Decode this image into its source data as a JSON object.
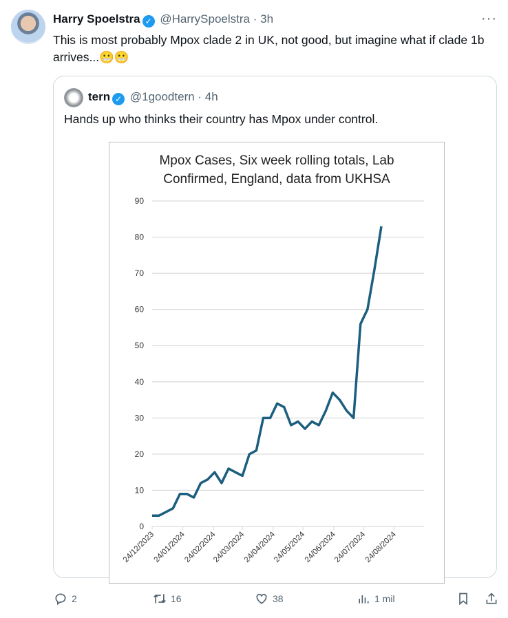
{
  "tweet": {
    "author_name": "Harry Spoelstra",
    "handle": "@HarrySpoelstra",
    "time": "· 3h",
    "text": "This is most probably Mpox clade 2 in UK, not good, but imagine what if clade 1b arrives...😬😬",
    "more_icon": "more-horizontal-icon"
  },
  "quote": {
    "author_name": "tern",
    "handle": "@1goodtern",
    "time": "· 4h",
    "text": "Hands up who thinks their country has Mpox under control."
  },
  "actions": {
    "replies": "2",
    "reposts": "16",
    "likes": "38",
    "views": "1 mil"
  },
  "chart_data": {
    "type": "line",
    "title": "Mpox Cases, Six week rolling totals, Lab Confirmed, England, data from UKHSA",
    "title_lines": [
      "Mpox Cases, Six week rolling totals, Lab",
      "Confirmed, England, data from UKHSA"
    ],
    "xlabel": "",
    "ylabel": "",
    "ylim": [
      0,
      90
    ],
    "yticks": [
      0,
      10,
      20,
      30,
      40,
      50,
      60,
      70,
      80,
      90
    ],
    "xlim": [
      "2023-12-24",
      "2024-09-23"
    ],
    "xtick_labels": [
      "24/12/2023",
      "24/01/2024",
      "24/02/2024",
      "24/03/2024",
      "24/04/2024",
      "24/05/2024",
      "24/06/2024",
      "24/07/2024",
      "24/08/2024"
    ],
    "xticks": [
      "2023-12-24",
      "2024-01-24",
      "2024-02-24",
      "2024-03-24",
      "2024-04-24",
      "2024-05-24",
      "2024-06-24",
      "2024-07-24",
      "2024-08-24"
    ],
    "grid": true,
    "color": "#1b5e7e",
    "x": [
      "2023-12-24",
      "2023-12-31",
      "2024-01-07",
      "2024-01-14",
      "2024-01-21",
      "2024-01-28",
      "2024-02-04",
      "2024-02-11",
      "2024-02-18",
      "2024-02-25",
      "2024-03-03",
      "2024-03-10",
      "2024-03-17",
      "2024-03-24",
      "2024-03-31",
      "2024-04-07",
      "2024-04-14",
      "2024-04-21",
      "2024-04-28",
      "2024-05-05",
      "2024-05-12",
      "2024-05-19",
      "2024-05-26",
      "2024-06-02",
      "2024-06-09",
      "2024-06-16",
      "2024-06-23",
      "2024-06-30",
      "2024-07-07",
      "2024-07-14",
      "2024-07-21",
      "2024-07-28",
      "2024-08-04",
      "2024-08-11"
    ],
    "values": [
      3,
      3,
      4,
      5,
      9,
      9,
      8,
      12,
      13,
      15,
      12,
      16,
      15,
      14,
      20,
      21,
      30,
      30,
      34,
      33,
      28,
      29,
      27,
      29,
      28,
      32,
      37,
      35,
      32,
      30,
      56,
      60,
      71,
      83
    ]
  }
}
